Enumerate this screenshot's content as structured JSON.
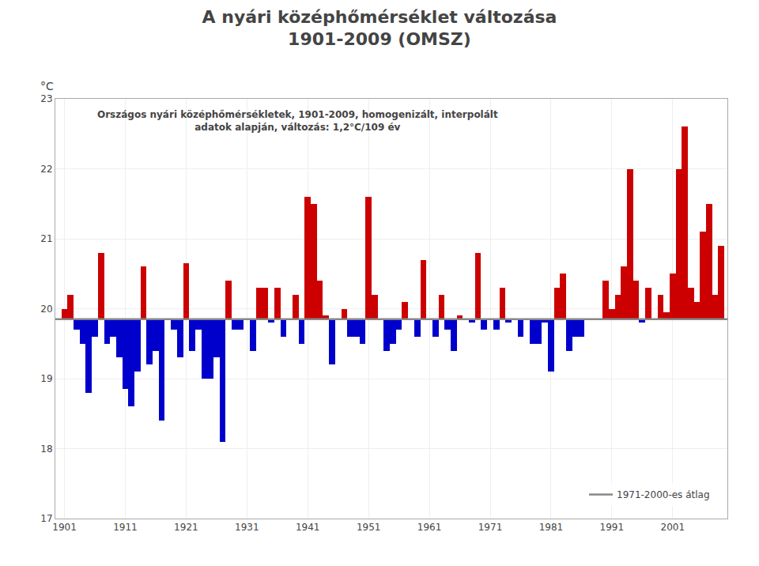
{
  "chart_data": {
    "type": "bar",
    "title": "A nyári középhőmérséklet változása\n1901-2009 (OMSZ)",
    "subtitle": "Országos nyári középhőmérsékletek, 1901-2009, homogenizált, interpolált\nadatok alapján, változás: 1,2°C/109 év",
    "ylabel": "°C",
    "x": [
      1901,
      1902,
      1903,
      1904,
      1905,
      1906,
      1907,
      1908,
      1909,
      1910,
      1911,
      1912,
      1913,
      1914,
      1915,
      1916,
      1917,
      1918,
      1919,
      1920,
      1921,
      1922,
      1923,
      1924,
      1925,
      1926,
      1927,
      1928,
      1929,
      1930,
      1931,
      1932,
      1933,
      1934,
      1935,
      1936,
      1937,
      1938,
      1939,
      1940,
      1941,
      1942,
      1943,
      1944,
      1945,
      1946,
      1947,
      1948,
      1949,
      1950,
      1951,
      1952,
      1953,
      1954,
      1955,
      1956,
      1957,
      1958,
      1959,
      1960,
      1961,
      1962,
      1963,
      1964,
      1965,
      1966,
      1967,
      1968,
      1969,
      1970,
      1971,
      1972,
      1973,
      1974,
      1975,
      1976,
      1977,
      1978,
      1979,
      1980,
      1981,
      1982,
      1983,
      1984,
      1985,
      1986,
      1987,
      1988,
      1989,
      1990,
      1991,
      1992,
      1993,
      1994,
      1995,
      1996,
      1997,
      1998,
      1999,
      2000,
      2001,
      2002,
      2003,
      2004,
      2005,
      2006,
      2007,
      2008,
      2009
    ],
    "values": [
      20.0,
      20.2,
      19.7,
      19.5,
      18.8,
      19.6,
      20.8,
      19.5,
      19.6,
      19.3,
      18.85,
      18.6,
      19.1,
      20.6,
      19.2,
      19.4,
      18.4,
      19.85,
      19.7,
      19.3,
      20.65,
      19.4,
      19.7,
      19.0,
      19.0,
      19.3,
      18.1,
      20.4,
      19.7,
      19.7,
      19.85,
      19.4,
      20.3,
      20.3,
      19.8,
      20.3,
      19.6,
      19.85,
      20.2,
      19.5,
      21.6,
      21.5,
      20.4,
      19.9,
      19.2,
      19.85,
      20.0,
      19.6,
      19.6,
      19.5,
      21.6,
      20.2,
      19.85,
      19.4,
      19.5,
      19.7,
      20.1,
      19.85,
      19.6,
      20.7,
      19.85,
      19.6,
      20.2,
      19.7,
      19.4,
      19.9,
      19.85,
      19.8,
      20.8,
      19.7,
      19.85,
      19.7,
      20.3,
      19.8,
      19.85,
      19.6,
      19.85,
      19.5,
      19.5,
      19.8,
      19.1,
      20.3,
      20.5,
      19.4,
      19.6,
      19.6,
      19.85,
      19.85,
      19.85,
      20.4,
      20.0,
      20.2,
      20.6,
      22.0,
      20.4,
      19.8,
      20.3,
      19.85,
      20.2,
      19.95,
      20.5,
      22.0,
      22.6,
      20.3,
      20.1,
      21.1,
      21.5,
      20.2,
      20.9
    ],
    "colors": [
      "#cc0000",
      "#cc0000",
      "#0000cc",
      "#0000cc",
      "#0000cc",
      "#0000cc",
      "#cc0000",
      "#0000cc",
      "#0000cc",
      "#0000cc",
      "#0000cc",
      "#0000cc",
      "#0000cc",
      "#cc0000",
      "#0000cc",
      "#0000cc",
      "#0000cc",
      "#cc0000",
      "#0000cc",
      "#0000cc",
      "#cc0000",
      "#0000cc",
      "#0000cc",
      "#0000cc",
      "#0000cc",
      "#0000cc",
      "#0000cc",
      "#cc0000",
      "#0000cc",
      "#0000cc",
      "#cc0000",
      "#0000cc",
      "#cc0000",
      "#cc0000",
      "#0000cc",
      "#cc0000",
      "#0000cc",
      "#cc0000",
      "#cc0000",
      "#0000cc",
      "#cc0000",
      "#cc0000",
      "#cc0000",
      "#cc0000",
      "#0000cc",
      "#cc0000",
      "#cc0000",
      "#0000cc",
      "#0000cc",
      "#0000cc",
      "#cc0000",
      "#cc0000",
      "#cc0000",
      "#0000cc",
      "#0000cc",
      "#0000cc",
      "#cc0000",
      "#cc0000",
      "#0000cc",
      "#cc0000",
      "#cc0000",
      "#0000cc",
      "#cc0000",
      "#0000cc",
      "#0000cc",
      "#cc0000",
      "#cc0000",
      "#0000cc",
      "#cc0000",
      "#0000cc",
      "#cc0000",
      "#0000cc",
      "#cc0000",
      "#0000cc",
      "#cc0000",
      "#0000cc",
      "#cc0000",
      "#0000cc",
      "#0000cc",
      "#0000cc",
      "#0000cc",
      "#cc0000",
      "#cc0000",
      "#0000cc",
      "#0000cc",
      "#0000cc",
      "#cc0000",
      "#cc0000",
      "#cc0000",
      "#cc0000",
      "#cc0000",
      "#cc0000",
      "#cc0000",
      "#cc0000",
      "#cc0000",
      "#0000cc",
      "#cc0000",
      "#cc0000",
      "#cc0000",
      "#cc0000",
      "#cc0000",
      "#cc0000",
      "#cc0000",
      "#cc0000",
      "#cc0000",
      "#cc0000",
      "#cc0000",
      "#cc0000",
      "#cc0000"
    ],
    "reference_line": {
      "name": "1971-2000-es átlag",
      "value": 19.85,
      "color": "#888888"
    },
    "xlim": [
      1899.5,
      2010
    ],
    "xticks": [
      1901,
      1911,
      1921,
      1931,
      1941,
      1951,
      1961,
      1971,
      1981,
      1991,
      2001
    ],
    "ylim": [
      17,
      23
    ],
    "yticks": [
      17,
      18,
      19,
      20,
      21,
      22,
      23
    ],
    "grid": true,
    "legend": "lower right"
  }
}
